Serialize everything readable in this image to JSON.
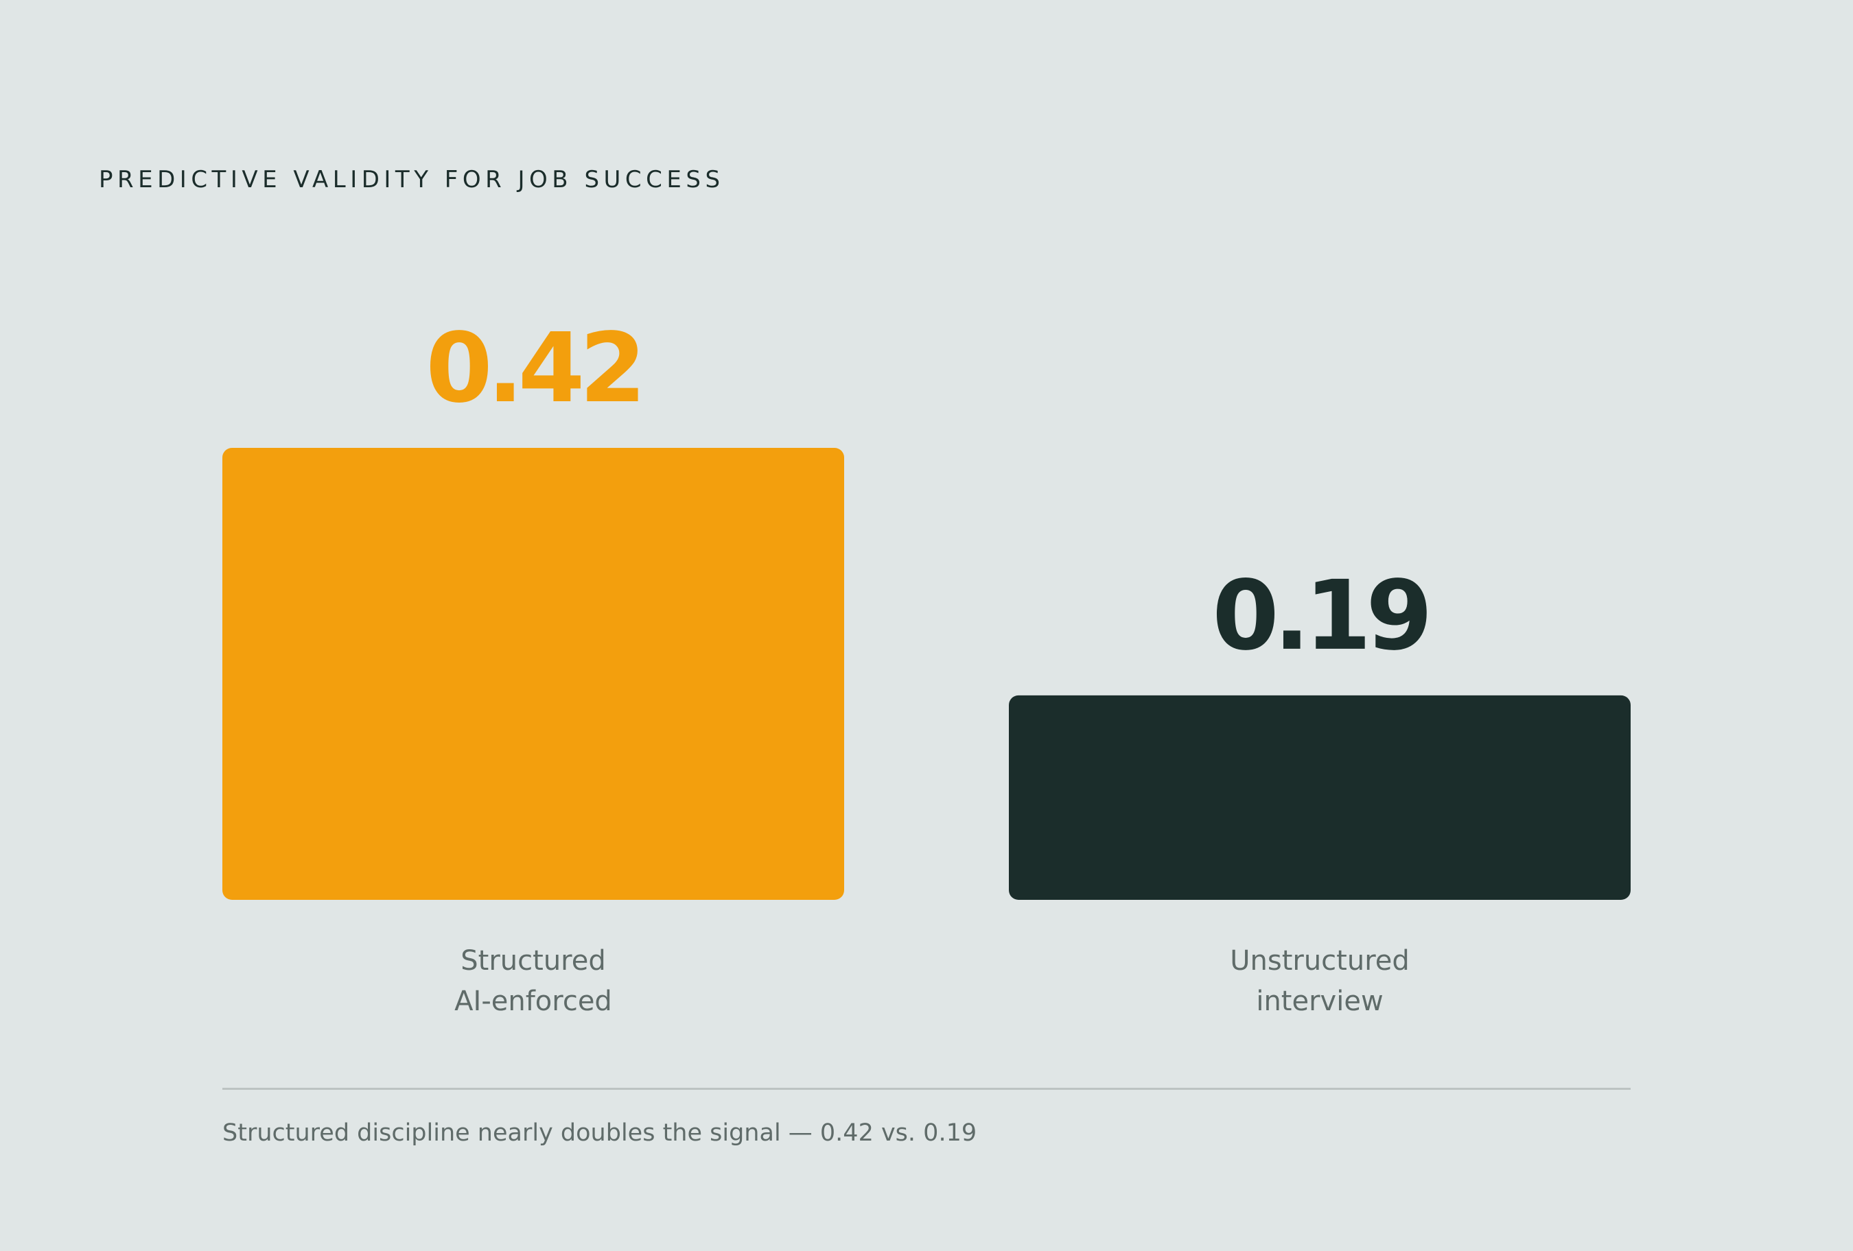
{
  "header": {
    "eyebrow": "PREDICTIVE VALIDITY FOR JOB SUCCESS"
  },
  "chart_data": {
    "type": "bar",
    "title": "PREDICTIVE VALIDITY FOR JOB SUCCESS",
    "categories": [
      [
        "Structured",
        "AI-enforced"
      ],
      [
        "Unstructured",
        "interview"
      ]
    ],
    "values": [
      0.42,
      0.19
    ],
    "value_labels": [
      "0.42",
      "0.19"
    ],
    "colors": [
      "#f39f0d",
      "#1b2d2b"
    ],
    "grid": false,
    "legend": "none"
  },
  "footer": {
    "caption": "Structured discipline nearly doubles the signal — 0.42 vs. 0.19"
  }
}
